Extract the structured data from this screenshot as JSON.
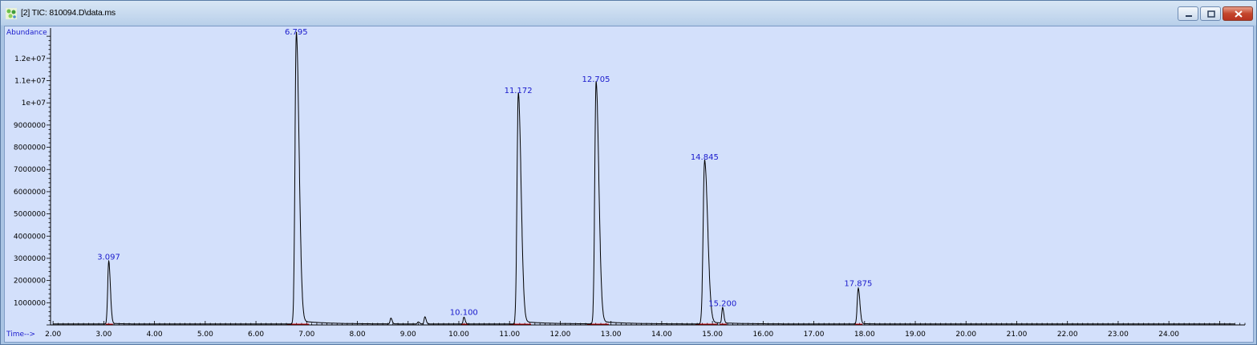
{
  "window": {
    "title": "[2] TIC: 810094.D\\data.ms",
    "icon": "chromatogram-icon",
    "controls": [
      "minimize-icon",
      "maximize-icon",
      "close-icon"
    ],
    "colors": {
      "plot_background": "#d3e0fb",
      "peak_label": "#1a1acc",
      "trace": "#000000",
      "baseline": "#cc0000",
      "axis_label": "#1a1acc"
    }
  },
  "chart_data": {
    "type": "line",
    "xlabel": "Time-->",
    "ylabel": "Abundance",
    "xlim": [
      1.95,
      25.5
    ],
    "ylim": [
      0,
      13150000
    ],
    "grid": false,
    "x_ticks": [
      "2.00",
      "3.00",
      "4.00",
      "5.00",
      "6.00",
      "7.00",
      "8.00",
      "9.00",
      "10.00",
      "11.00",
      "12.00",
      "13.00",
      "14.00",
      "15.00",
      "16.00",
      "17.00",
      "18.00",
      "19.00",
      "20.00",
      "21.00",
      "22.00",
      "23.00",
      "24.00"
    ],
    "y_ticks": [
      "1000000",
      "2000000",
      "3000000",
      "4000000",
      "5000000",
      "6000000",
      "7000000",
      "8000000",
      "9000000",
      "1e+07",
      "1.1e+07",
      "1.2e+07"
    ],
    "peaks": [
      {
        "rt": 3.097,
        "label": "3.097",
        "height": 2800000
      },
      {
        "rt": 6.795,
        "label": "6.795",
        "height": 13000000
      },
      {
        "rt": 10.1,
        "label": "10.100",
        "height": 300000
      },
      {
        "rt": 11.172,
        "label": "11.172",
        "height": 10300000
      },
      {
        "rt": 12.705,
        "label": "12.705",
        "height": 10800000
      },
      {
        "rt": 14.845,
        "label": "14.845",
        "height": 7300000
      },
      {
        "rt": 15.2,
        "label": "15.200",
        "height": 700000
      },
      {
        "rt": 17.875,
        "label": "17.875",
        "height": 1600000
      }
    ],
    "minor_peaks": [
      {
        "rt": 8.66,
        "height": 260000
      },
      {
        "rt": 9.33,
        "height": 320000
      },
      {
        "rt": 9.2,
        "height": 90000
      }
    ]
  }
}
